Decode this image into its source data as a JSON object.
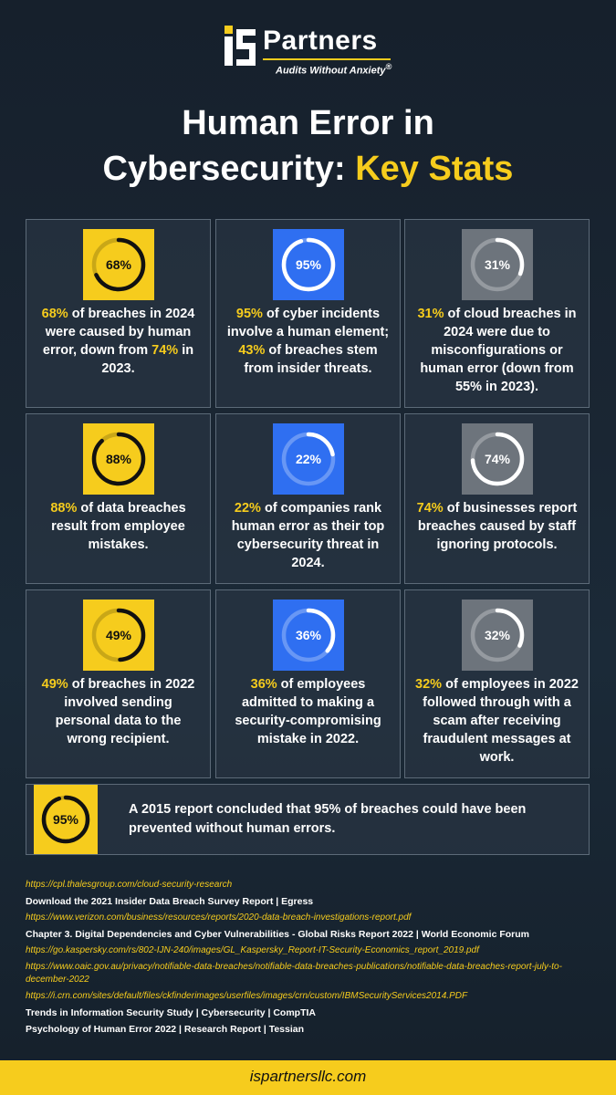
{
  "brand": {
    "name": "Partners",
    "tagline": "Audits Without Anxiety",
    "registered": "®",
    "accent": "#f6cc1d"
  },
  "title": {
    "line1": "Human Error in",
    "line2_prefix": "Cybersecurity:",
    "line2_accent": "Key Stats"
  },
  "cards": [
    {
      "badge": "68%",
      "percent": 68,
      "style": "yellow",
      "parts": [
        [
          "68%",
          true
        ],
        [
          " of breaches in 2024 were caused by human error, down from ",
          false
        ],
        [
          "74%",
          true
        ],
        [
          " in 2023.",
          false
        ]
      ]
    },
    {
      "badge": "95%",
      "percent": 95,
      "style": "blue",
      "parts": [
        [
          "95%",
          true
        ],
        [
          " of cyber incidents involve a human element; ",
          false
        ],
        [
          "43%",
          true
        ],
        [
          " of breaches stem from insider threats.",
          false
        ]
      ]
    },
    {
      "badge": "31%",
      "percent": 31,
      "style": "gray",
      "parts": [
        [
          "31%",
          true
        ],
        [
          " of cloud breaches in 2024 were due to misconfigurations or human error (down from 55% in 2023).",
          false
        ]
      ]
    },
    {
      "badge": "88%",
      "percent": 88,
      "style": "yellow",
      "parts": [
        [
          "88%",
          true
        ],
        [
          " of data breaches result from employee mistakes.",
          false
        ]
      ]
    },
    {
      "badge": "22%",
      "percent": 22,
      "style": "blue",
      "parts": [
        [
          "22%",
          true
        ],
        [
          " of companies rank human error as their top cybersecurity threat in 2024.",
          false
        ]
      ]
    },
    {
      "badge": "74%",
      "percent": 74,
      "style": "gray",
      "parts": [
        [
          "74%",
          true
        ],
        [
          " of businesses report breaches caused by staff ignoring protocols.",
          false
        ]
      ]
    },
    {
      "badge": "49%",
      "percent": 49,
      "style": "yellow",
      "parts": [
        [
          "49%",
          true
        ],
        [
          " of breaches in 2022 involved sending personal data to the wrong recipient.",
          false
        ]
      ]
    },
    {
      "badge": "36%",
      "percent": 36,
      "style": "blue",
      "parts": [
        [
          "36%",
          true
        ],
        [
          " of employees admitted to making a security-compromising mistake in 2022.",
          false
        ]
      ]
    },
    {
      "badge": "32%",
      "percent": 32,
      "style": "gray",
      "parts": [
        [
          "32%",
          true
        ],
        [
          " of employees in 2022 followed through with a scam after receiving fraudulent messages at work.",
          false
        ]
      ]
    }
  ],
  "summary": {
    "badge": "95%",
    "percent": 95,
    "text": "A 2015 report concluded that 95% of breaches could have been prevented without human errors."
  },
  "sources": [
    {
      "text": "https://cpl.thalesgroup.com/cloud-security-research",
      "kind": "link"
    },
    {
      "text": "Download the 2021 Insider Data Breach Survey Report | Egress",
      "kind": "plain"
    },
    {
      "text": "https://www.verizon.com/business/resources/reports/2020-data-breach-investigations-report.pdf",
      "kind": "link"
    },
    {
      "text": "Chapter 3. Digital Dependencies and Cyber Vulnerabilities - Global Risks Report 2022 | World Economic Forum",
      "kind": "plain"
    },
    {
      "text": "https://go.kaspersky.com/rs/802-IJN-240/images/GL_Kaspersky_Report-IT-Security-Economics_report_2019.pdf",
      "kind": "link"
    },
    {
      "text": "https://www.oaic.gov.au/privacy/notifiable-data-breaches/notifiable-data-breaches-publications/notifiable-data-breaches-report-july-to-december-2022",
      "kind": "link"
    },
    {
      "text": "https://i.crn.com/sites/default/files/ckfinderimages/userfiles/images/crn/custom/IBMSecurityServices2014.PDF",
      "kind": "link"
    },
    {
      "text": "Trends in Information Security Study | Cybersecurity | CompTIA",
      "kind": "plain"
    },
    {
      "text": "Psychology of Human Error 2022 | Research Report | Tessian",
      "kind": "plain"
    }
  ],
  "footer": {
    "url": "ispartnersllc.com"
  }
}
